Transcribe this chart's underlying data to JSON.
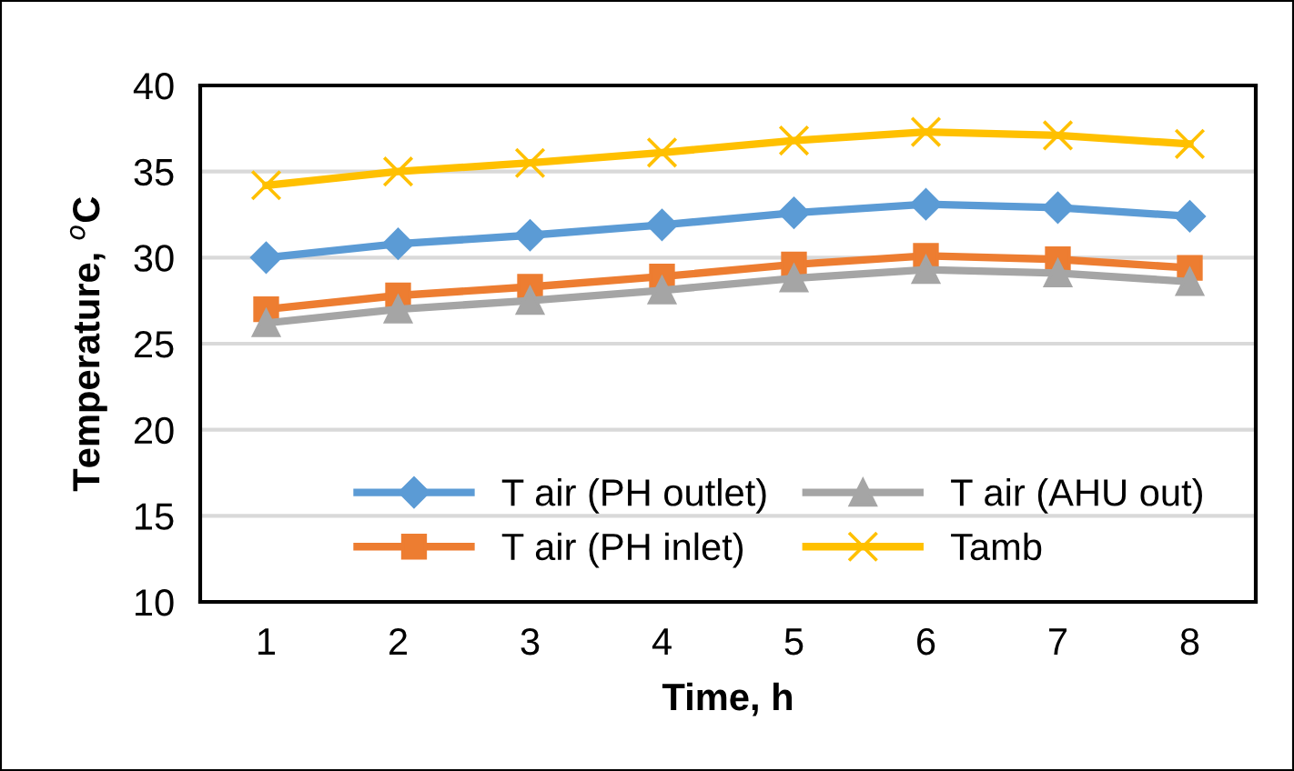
{
  "chart_data": {
    "type": "line",
    "xlabel": "Time, h",
    "ylabel": "Temperature, $^{o}$C",
    "categories": [
      "1",
      "2",
      "3",
      "4",
      "5",
      "6",
      "7",
      "8"
    ],
    "ylim": [
      10,
      40
    ],
    "yticks": [
      10,
      15,
      20,
      25,
      30,
      35,
      40
    ],
    "grid": "y",
    "legend": "bottom",
    "series": [
      {
        "name": "T air (PH outlet)",
        "color": "#5b9bd5",
        "marker": "diamond",
        "values": [
          30.0,
          30.8,
          31.3,
          31.9,
          32.6,
          33.1,
          32.9,
          32.4
        ]
      },
      {
        "name": "T air (PH inlet)",
        "color": "#ed7d31",
        "marker": "square",
        "values": [
          27.0,
          27.8,
          28.3,
          28.9,
          29.6,
          30.1,
          29.9,
          29.4
        ]
      },
      {
        "name": "T air (AHU out)",
        "color": "#a5a5a5",
        "marker": "triangle",
        "values": [
          26.2,
          27.0,
          27.5,
          28.1,
          28.8,
          29.3,
          29.1,
          28.6
        ]
      },
      {
        "name": "Tamb",
        "color": "#ffc000",
        "marker": "cross",
        "values": [
          34.2,
          35.0,
          35.5,
          36.1,
          36.8,
          37.3,
          37.1,
          36.6
        ]
      }
    ]
  }
}
